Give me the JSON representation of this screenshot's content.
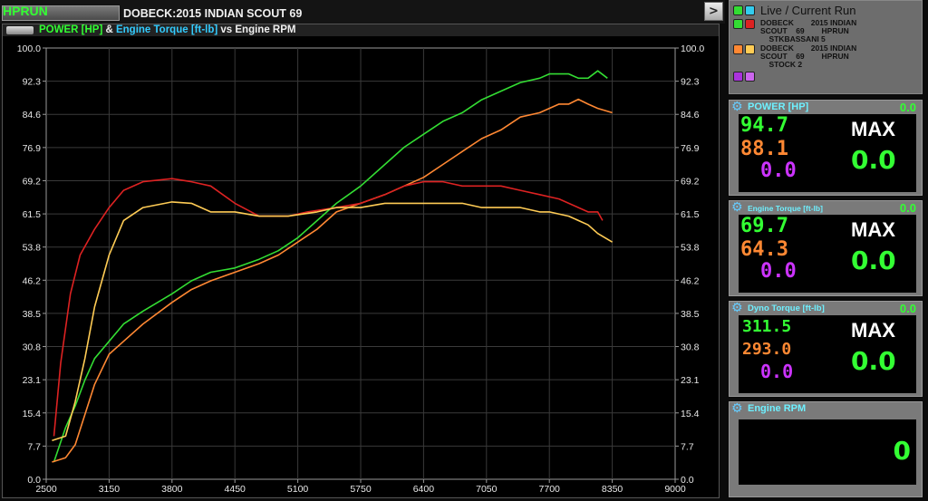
{
  "header": {
    "run_tag": "HPRUN",
    "run_title": "DOBECK:2015 INDIAN SCOUT 69",
    "nav_button": ">"
  },
  "chart_header": {
    "title_part1": "POWER [HP]",
    "title_amp": " & ",
    "title_part2": "Engine Torque [ft-lb]",
    "title_part3": " vs Engine RPM"
  },
  "chart_data": {
    "type": "line",
    "x_ticks": [
      "2500",
      "3150",
      "3800",
      "4450",
      "5100",
      "5750",
      "6400",
      "7050",
      "7700",
      "8350",
      "9000"
    ],
    "y_ticks": [
      "0.0",
      "7.7",
      "15.4",
      "23.1",
      "30.8",
      "38.5",
      "46.2",
      "53.8",
      "61.5",
      "69.2",
      "76.9",
      "84.6",
      "92.3",
      "100.0"
    ],
    "xlim": [
      2500,
      9000
    ],
    "ylim": [
      0,
      100
    ],
    "grid": true,
    "series": [
      {
        "run": "STKBASSANI 5",
        "quantity": "POWER [HP]",
        "color": "#33dd33",
        "x": [
          2580,
          2700,
          2800,
          2900,
          3000,
          3150,
          3300,
          3500,
          3800,
          4000,
          4200,
          4450,
          4700,
          4900,
          5100,
          5300,
          5500,
          5750,
          6000,
          6200,
          6400,
          6600,
          6800,
          7000,
          7200,
          7400,
          7600,
          7700,
          7800,
          7900,
          8000,
          8100,
          8200,
          8300
        ],
        "y": [
          4,
          12,
          17,
          23,
          28,
          32,
          36,
          39,
          43,
          46,
          48,
          49,
          51,
          53,
          56,
          60,
          64,
          68,
          73,
          77,
          80,
          83,
          85,
          88,
          90,
          92,
          93,
          94,
          94,
          94,
          93,
          93,
          94.7,
          93
        ]
      },
      {
        "run": "STOCK 2",
        "quantity": "POWER [HP]",
        "color": "#ff8833",
        "x": [
          2560,
          2700,
          2800,
          2900,
          3000,
          3150,
          3300,
          3500,
          3800,
          4000,
          4200,
          4450,
          4700,
          4900,
          5100,
          5300,
          5500,
          5750,
          6000,
          6200,
          6400,
          6600,
          6800,
          7000,
          7200,
          7400,
          7600,
          7700,
          7800,
          7900,
          8000,
          8100,
          8200,
          8350
        ],
        "y": [
          4,
          5,
          8,
          15,
          22,
          29,
          32,
          36,
          41,
          44,
          46,
          48,
          50,
          52,
          55,
          58,
          62,
          64,
          66,
          68,
          70,
          73,
          76,
          79,
          81,
          84,
          85,
          86,
          87,
          87,
          88.1,
          87,
          86,
          85
        ]
      },
      {
        "run": "STKBASSANI 5",
        "quantity": "Engine Torque [ft-lb]",
        "color": "#dd2222",
        "x": [
          2580,
          2650,
          2750,
          2850,
          3000,
          3150,
          3300,
          3500,
          3800,
          4000,
          4200,
          4450,
          4700,
          5000,
          5200,
          5500,
          5750,
          6000,
          6200,
          6400,
          6600,
          6800,
          7000,
          7200,
          7400,
          7600,
          7800,
          8000,
          8100,
          8200,
          8250
        ],
        "y": [
          10,
          27,
          43,
          52,
          58,
          63,
          67,
          69,
          69.7,
          69,
          68,
          64,
          61,
          61,
          62,
          63,
          64,
          66,
          68,
          69,
          69,
          68,
          68,
          68,
          67,
          66,
          65,
          63,
          62,
          62,
          60
        ]
      },
      {
        "run": "STOCK 2",
        "quantity": "Engine Torque [ft-lb]",
        "color": "#ffcc55",
        "x": [
          2560,
          2700,
          2800,
          2900,
          3000,
          3150,
          3300,
          3500,
          3800,
          4000,
          4200,
          4450,
          4700,
          5000,
          5300,
          5500,
          5750,
          6000,
          6200,
          6400,
          6800,
          7000,
          7200,
          7400,
          7600,
          7700,
          7900,
          8100,
          8200,
          8350
        ],
        "y": [
          9,
          10,
          18,
          28,
          40,
          52,
          60,
          63,
          64.3,
          64,
          62,
          62,
          61,
          61,
          62,
          63,
          63,
          64,
          64,
          64,
          64,
          63,
          63,
          63,
          62,
          62,
          61,
          59,
          57,
          55
        ]
      }
    ]
  },
  "legend_panel": {
    "title": "Live / Current Run",
    "entries": [
      {
        "text": "",
        "color1": "#33dd33",
        "color2": "#33ccee"
      },
      {
        "text": "DOBECK        2015 INDIAN\nSCOUT    69        HPRUN\n    STKBASSANI 5",
        "color1": "#33dd33",
        "color2": "#dd2222"
      },
      {
        "text": "DOBECK        2015 INDIAN\nSCOUT    69        HPRUN\n    STOCK 2",
        "color1": "#ff8833",
        "color2": "#ffcc55"
      },
      {
        "text": "",
        "color1": "#aa33dd",
        "color2": "#cc66ee"
      }
    ]
  },
  "gauges": [
    {
      "title": "POWER [HP]",
      "current": "0.0",
      "v1": "94.7",
      "v2": "88.1",
      "v3": "0.0",
      "max_label": "MAX",
      "max_value": "0.0"
    },
    {
      "title": "Engine Torque [ft-lb]",
      "current": "0.0",
      "v1": "69.7",
      "v2": "64.3",
      "v3": "0.0",
      "max_label": "MAX",
      "max_value": "0.0"
    },
    {
      "title": "Dyno Torque [ft-lb]",
      "current": "0.0",
      "v1": "311.5",
      "v2": "293.0",
      "v3": "0.0",
      "max_label": "MAX",
      "max_value": "0.0"
    },
    {
      "title": "Engine RPM",
      "value": "0"
    }
  ],
  "colors": {
    "green": "#33ff33",
    "orange": "#ff8833",
    "purple": "#cc33ff",
    "cyan": "#6ef0ff"
  }
}
